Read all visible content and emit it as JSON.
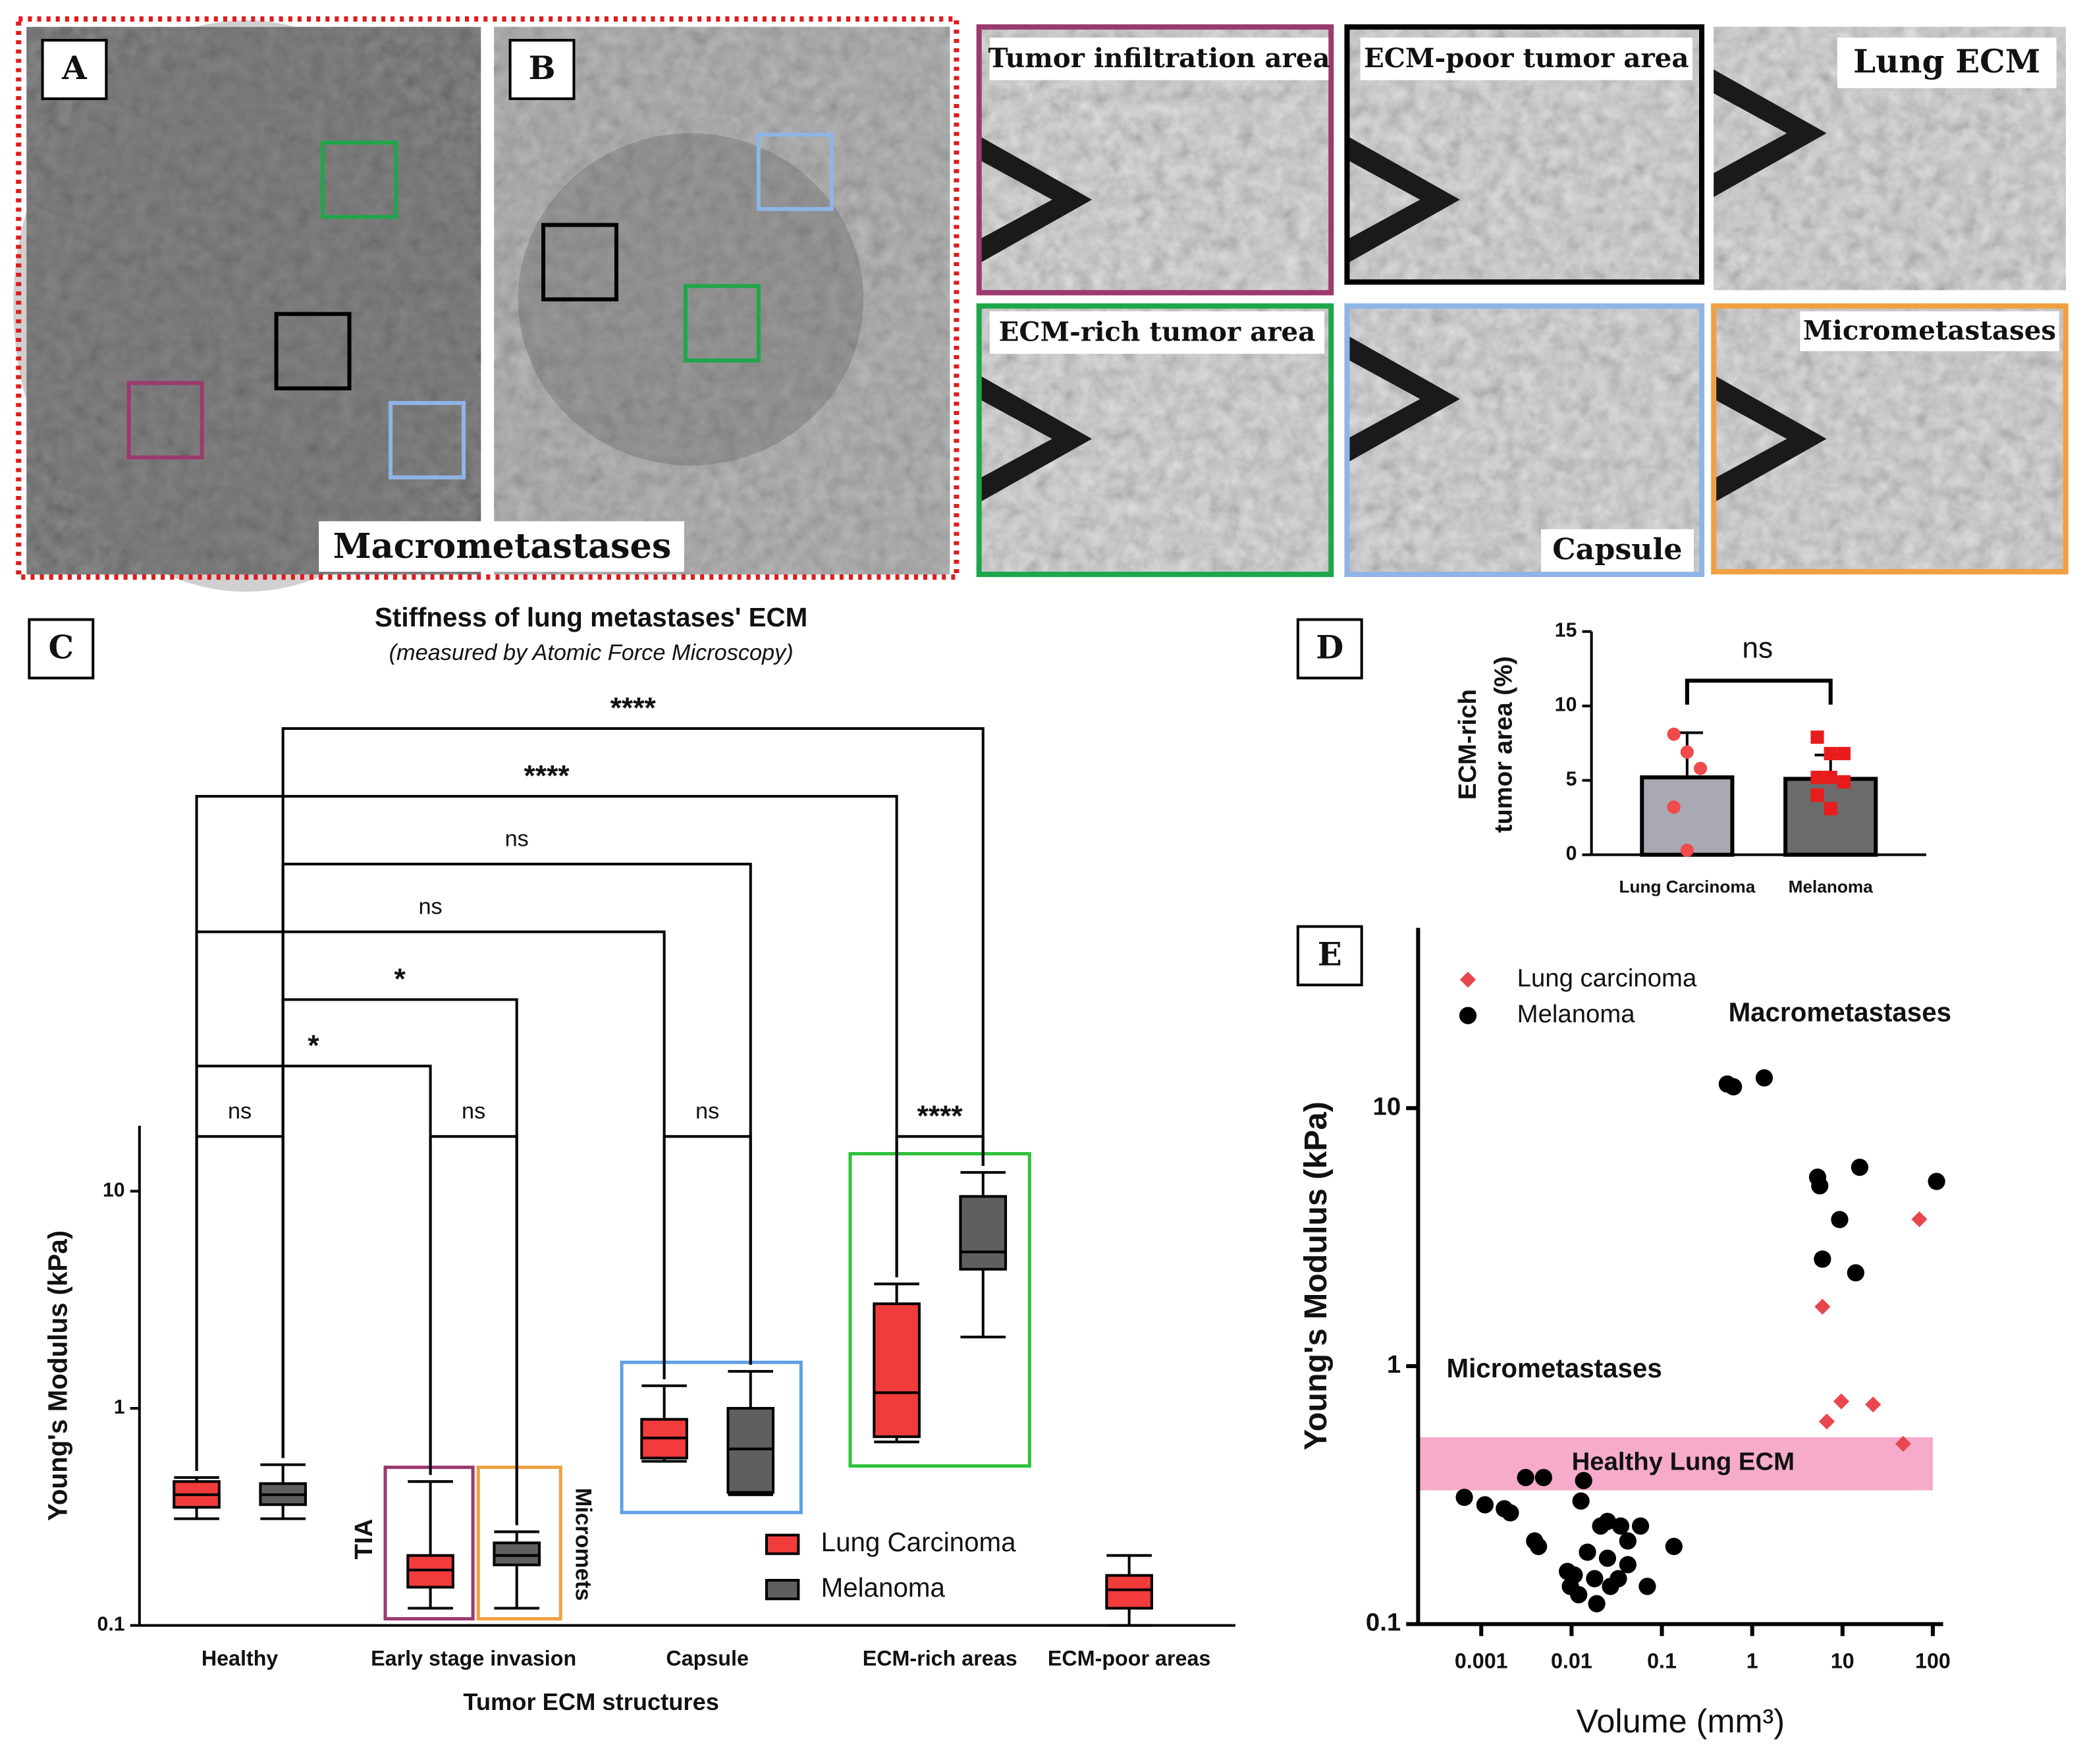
{
  "figure": {
    "panels": [
      "A",
      "B"
    ],
    "macro_label": "Macrometastases",
    "tiles": [
      "Tumor infiltration area",
      "ECM-poor tumor area",
      "Lung ECM",
      "ECM-rich tumor area",
      "Capsule",
      "Micrometastases"
    ]
  },
  "chart_data": [
    {
      "type": "box",
      "panel_label": "C",
      "title": "Stiffness of lung metastases' ECM",
      "subtitle": "(measured by Atomic Force Microscopy)",
      "xlabel": "Tumor ECM structures",
      "ylabel": "Young's Modulus (kPa)",
      "categories": [
        "Healthy",
        "Early stage invasion",
        "Capsule",
        "ECM-rich areas",
        "ECM-poor areas"
      ],
      "log_y": true,
      "ylim": [
        0.1,
        20
      ],
      "yticks": [
        0.1,
        1,
        10
      ],
      "series": [
        {
          "name": "Lung Carcinoma",
          "color": "#f23c3c",
          "values": [
            {
              "min": 0.31,
              "q1": 0.35,
              "median": 0.4,
              "q3": 0.46,
              "max": 0.48
            },
            {
              "min": 0.12,
              "q1": 0.15,
              "median": 0.18,
              "q3": 0.21,
              "max": 0.46
            },
            {
              "min": 0.57,
              "q1": 0.59,
              "median": 0.73,
              "q3": 0.89,
              "max": 1.27
            },
            {
              "min": 0.7,
              "q1": 0.74,
              "median": 1.18,
              "q3": 3.03,
              "max": 3.74
            },
            {
              "min": 0.1,
              "q1": 0.12,
              "median": 0.146,
              "q3": 0.17,
              "max": 0.21
            }
          ]
        },
        {
          "name": "Melanoma",
          "color": "#5f5f5f",
          "values": [
            {
              "min": 0.31,
              "q1": 0.36,
              "median": 0.4,
              "q3": 0.45,
              "max": 0.55
            },
            {
              "min": 0.12,
              "q1": 0.19,
              "median": 0.21,
              "q3": 0.24,
              "max": 0.27
            },
            {
              "min": 0.4,
              "q1": 0.41,
              "median": 0.65,
              "q3": 1.0,
              "max": 1.48
            },
            {
              "min": 2.13,
              "q1": 4.37,
              "median": 5.25,
              "q3": 9.46,
              "max": 12.2
            },
            null
          ]
        }
      ],
      "annotations": [
        "ns",
        "ns",
        "ns",
        "****",
        "*",
        "*",
        "ns",
        "ns",
        "****",
        "****"
      ],
      "group_labels": [
        "TIA",
        "Micromets"
      ]
    },
    {
      "type": "bar",
      "panel_label": "D",
      "ylabel_lines": [
        "ECM-rich",
        "tumor area (%)"
      ],
      "categories": [
        "Lung Carcinoma",
        "Melanoma"
      ],
      "values": [
        5.2,
        5.1
      ],
      "errors": [
        3.0,
        1.6
      ],
      "colors": [
        "#a9a9b3",
        "#6b6b6b"
      ],
      "points": [
        [
          8.1,
          6.9,
          5.8,
          3.2,
          0.3
        ],
        [
          7.9,
          6.8,
          6.8,
          5.2,
          5.2,
          4.9,
          4.0,
          3.1
        ]
      ],
      "point_colors": [
        "#f04a4a",
        "#e81c1c"
      ],
      "ylim": [
        0,
        15
      ],
      "yticks": [
        0,
        5,
        10,
        15
      ],
      "annotations": [
        "ns"
      ]
    },
    {
      "type": "scatter",
      "panel_label": "E",
      "xlabel": "Volume (mm³)",
      "ylabel": "Young's Modulus (kPa)",
      "log_x": true,
      "log_y": true,
      "xlim": [
        0.0002,
        130
      ],
      "ylim": [
        0.1,
        50
      ],
      "xticks": [
        0.001,
        0.01,
        0.1,
        1,
        10,
        100
      ],
      "yticks": [
        0.1,
        1,
        10
      ],
      "legend": "upper left",
      "series": [
        {
          "name": "Lung carcinoma",
          "color": "#e8474f",
          "marker": "diamond",
          "x": [
            71,
            6.0,
            9.7,
            6.7,
            21.8,
            47
          ],
          "values": [
            3.71,
            1.7,
            0.73,
            0.61,
            0.71,
            0.5
          ]
        },
        {
          "name": "Melanoma",
          "color": "#000000",
          "marker": "circle",
          "x": [
            0.53,
            0.62,
            1.36,
            5.3,
            5.6,
            15.5,
            110,
            9.3,
            6.0,
            14.0,
            0.00065,
            0.0011,
            0.0018,
            0.0021,
            0.0031,
            0.0049,
            0.0136,
            0.0127,
            0.0039,
            0.0043,
            0.009,
            0.0107,
            0.015,
            0.021,
            0.025,
            0.035,
            0.042,
            0.058,
            0.018,
            0.025,
            0.033,
            0.042,
            0.069,
            0.136,
            0.0097,
            0.012,
            0.019,
            0.027
          ],
          "values": [
            12.4,
            12.1,
            13.1,
            5.4,
            5.0,
            5.9,
            5.2,
            3.7,
            2.6,
            2.3,
            0.31,
            0.29,
            0.28,
            0.27,
            0.37,
            0.37,
            0.36,
            0.3,
            0.21,
            0.2,
            0.16,
            0.155,
            0.19,
            0.24,
            0.25,
            0.24,
            0.21,
            0.24,
            0.15,
            0.18,
            0.15,
            0.17,
            0.14,
            0.2,
            0.14,
            0.13,
            0.12,
            0.14
          ]
        }
      ],
      "band": {
        "label": "Healthy Lung ECM",
        "range": [
          0.33,
          0.53
        ],
        "color": "#f48fb8"
      },
      "annotations": [
        {
          "text": "Macrometastases",
          "color": "#22b33a"
        },
        {
          "text": "Micrometastases",
          "color": "#f28c1c"
        }
      ]
    }
  ]
}
